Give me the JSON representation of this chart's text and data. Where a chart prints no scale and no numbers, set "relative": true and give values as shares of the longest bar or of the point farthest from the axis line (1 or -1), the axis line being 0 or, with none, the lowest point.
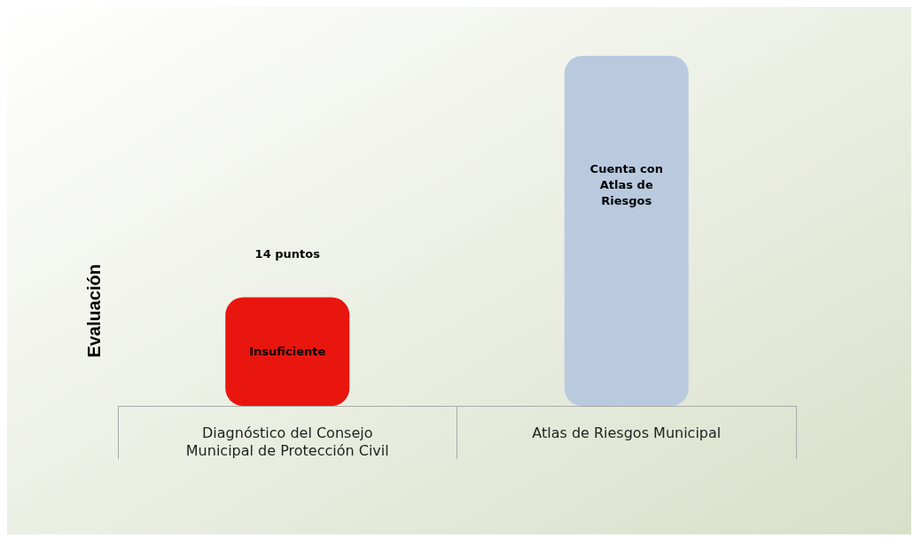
{
  "chart_data": {
    "type": "bar",
    "relative": true,
    "ylabel": "Evaluación",
    "categories": [
      "Diagnóstico del Consejo\nMunicipal de Protección Civil",
      "Atlas de Riesgos Municipal"
    ],
    "values": [
      0.31,
      1
    ],
    "colors": [
      "#e8160f",
      "#b9cadf"
    ],
    "annotations": [
      "14 puntos",
      "Insuficiente",
      "Cuenta con\nAtlas de\nRiesgos"
    ]
  }
}
